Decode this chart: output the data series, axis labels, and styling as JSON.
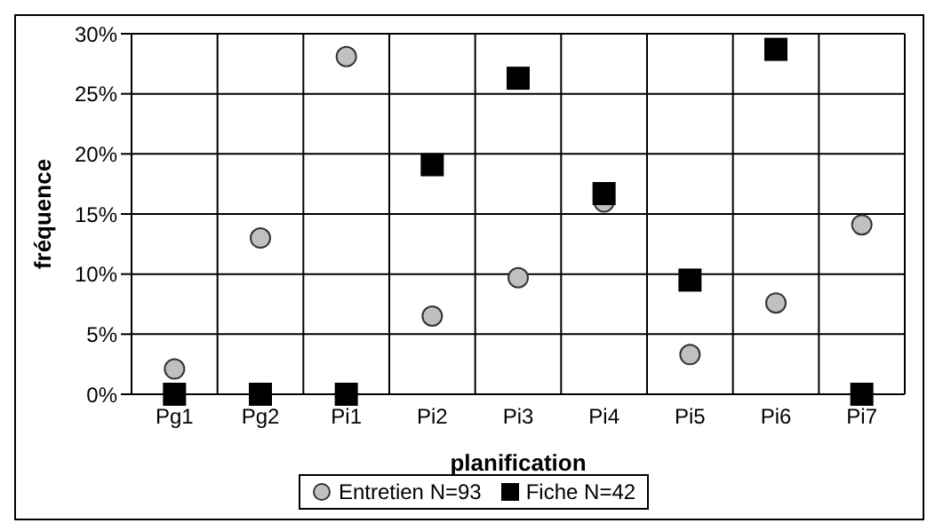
{
  "chart_data": {
    "type": "scatter",
    "xlabel": "planification",
    "ylabel": "fréquence",
    "categories": [
      "Pg1",
      "Pg2",
      "Pi1",
      "Pi2",
      "Pi3",
      "Pi4",
      "Pi5",
      "Pi6",
      "Pi7"
    ],
    "series": [
      {
        "name": "Entretien N=93",
        "color": "#c0c0c0",
        "marker": "circle",
        "values": [
          2.1,
          13.0,
          28.1,
          6.5,
          9.7,
          16.0,
          3.3,
          7.6,
          14.1
        ]
      },
      {
        "name": "Fiche N=42",
        "color": "#000000",
        "marker": "square",
        "values": [
          0,
          0,
          0,
          19.1,
          26.3,
          16.7,
          9.5,
          28.7,
          0
        ]
      }
    ],
    "ylim": [
      0,
      30
    ],
    "yticks": [
      {
        "value": 0,
        "label": "0%"
      },
      {
        "value": 5,
        "label": "5%"
      },
      {
        "value": 10,
        "label": "10%"
      },
      {
        "value": 15,
        "label": "15%"
      },
      {
        "value": 20,
        "label": "20%"
      },
      {
        "value": 25,
        "label": "25%"
      },
      {
        "value": 30,
        "label": "30%"
      }
    ],
    "grid": true,
    "legend": "bottom"
  }
}
